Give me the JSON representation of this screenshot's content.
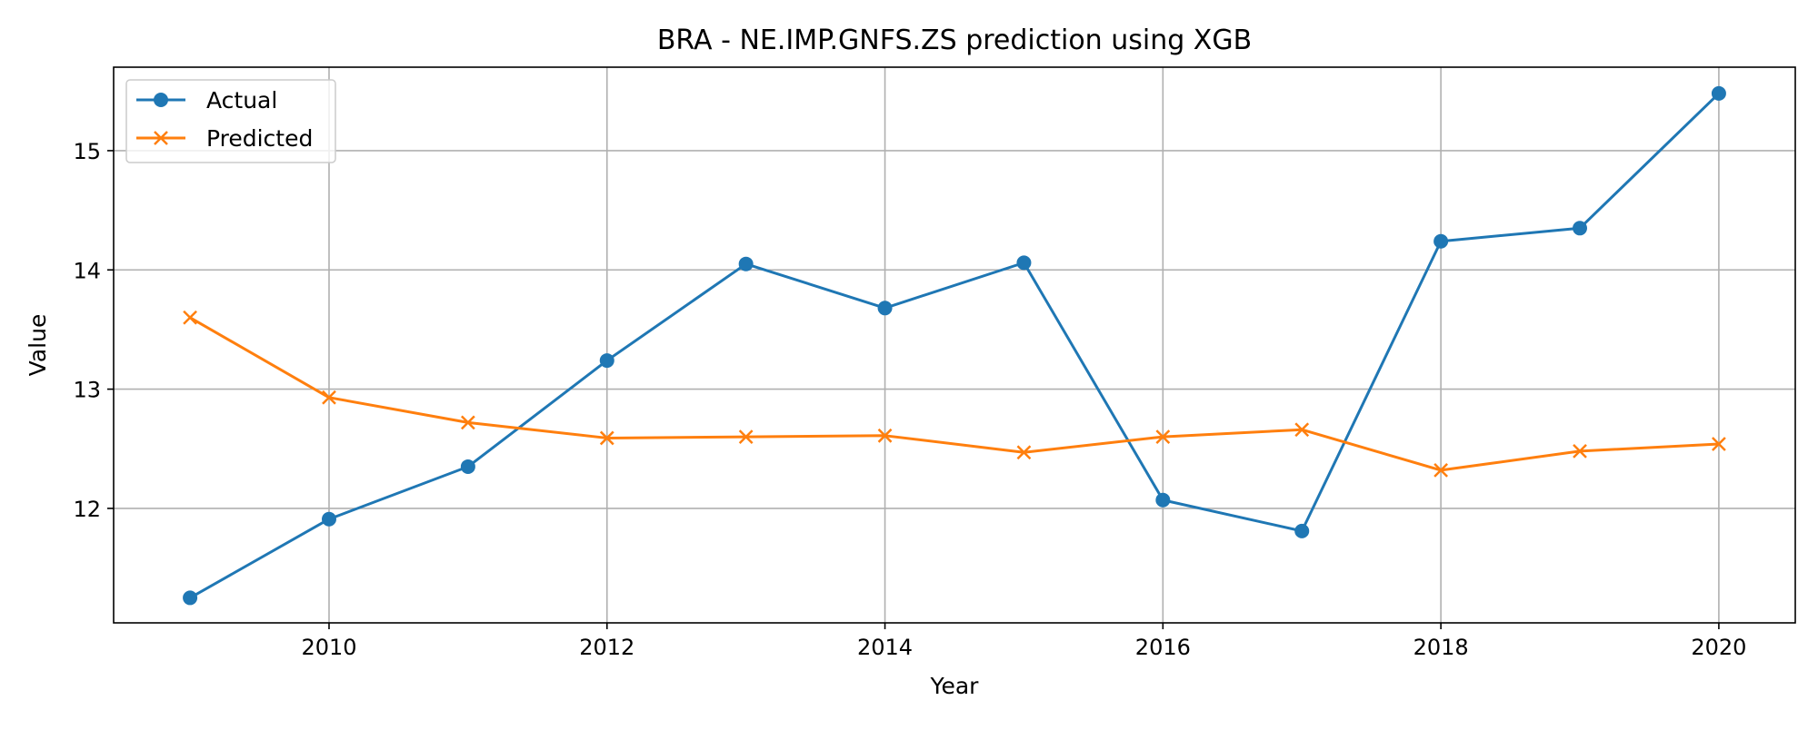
{
  "chart_data": {
    "type": "line",
    "title": "BRA - NE.IMP.GNFS.ZS prediction using XGB",
    "xlabel": "Year",
    "ylabel": "Value",
    "x": [
      2009,
      2010,
      2011,
      2012,
      2013,
      2014,
      2015,
      2016,
      2017,
      2018,
      2019,
      2020
    ],
    "xlim": [
      2008.45,
      2020.55
    ],
    "ylim": [
      11.04,
      15.7
    ],
    "xticks": [
      2010,
      2012,
      2014,
      2016,
      2018,
      2020
    ],
    "xtick_labels": [
      "2010",
      "2012",
      "2014",
      "2016",
      "2018",
      "2020"
    ],
    "yticks": [
      12,
      13,
      14,
      15
    ],
    "ytick_labels": [
      "12",
      "13",
      "14",
      "15"
    ],
    "grid": true,
    "legend_position": "top-left",
    "series": [
      {
        "name": "Actual",
        "color": "#1f77b4",
        "marker": "circle",
        "values": [
          11.25,
          11.91,
          12.35,
          13.24,
          14.05,
          13.68,
          14.06,
          12.07,
          11.81,
          14.24,
          14.35,
          15.48
        ]
      },
      {
        "name": "Predicted",
        "color": "#ff7f0e",
        "marker": "x",
        "values": [
          13.6,
          12.93,
          12.72,
          12.59,
          12.6,
          12.61,
          12.47,
          12.6,
          12.66,
          12.32,
          12.48,
          12.54
        ]
      }
    ]
  }
}
